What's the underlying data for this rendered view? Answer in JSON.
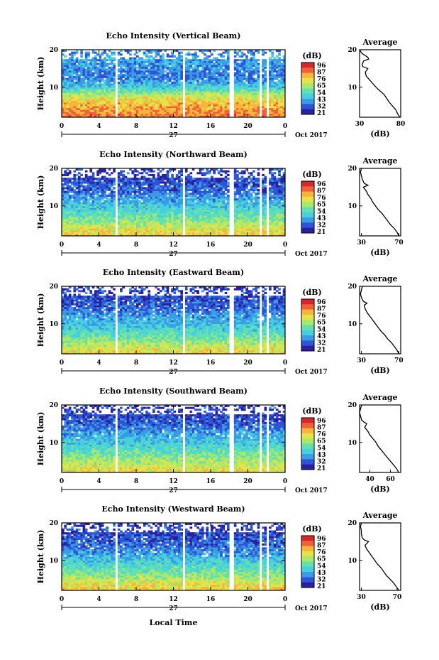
{
  "figure": {
    "xlabel": "Local Time",
    "date_label": "Oct 2017",
    "day_label": "27",
    "colorbar_unit": "(dB)",
    "colorbar_ticks": [
      "96",
      "87",
      "76",
      "65",
      "54",
      "43",
      "32",
      "21"
    ],
    "colors": {
      "scale": [
        "#2a1f9e",
        "#2d55d6",
        "#3b9be5",
        "#45cfe0",
        "#62e0b0",
        "#a8e86a",
        "#e6e24a",
        "#f7b53a",
        "#f0603a",
        "#d62828"
      ]
    }
  },
  "chart_data": [
    {
      "type": "heatmap",
      "title": "Echo Intensity (Vertical Beam)",
      "ylabel": "Height (km)",
      "xlim": [
        0,
        24
      ],
      "ylim": [
        2,
        20
      ],
      "x_ticks": [
        "0",
        "4",
        "8",
        "12",
        "16",
        "20",
        "0"
      ],
      "y_ticks": [
        "20",
        "10"
      ],
      "data_gaps_hours": [
        [
          5.8,
          6.1
        ],
        [
          12.9,
          13.2
        ],
        [
          18.0,
          18.5
        ],
        [
          21.2,
          21.5
        ],
        [
          21.9,
          22.2
        ]
      ],
      "mean_intensity_dB_by_height": [
        [
          2,
          80
        ],
        [
          4,
          76
        ],
        [
          6,
          72
        ],
        [
          8,
          62
        ],
        [
          10,
          48
        ],
        [
          12,
          38
        ],
        [
          14,
          36
        ],
        [
          16,
          40
        ],
        [
          18,
          40
        ],
        [
          20,
          38
        ]
      ],
      "profile": {
        "title": "Average",
        "xlabel": "(dB)",
        "x_ticks": [
          "30",
          "80"
        ],
        "y_ticks": [
          "20",
          "10"
        ],
        "xlim": [
          30,
          80
        ],
        "values": [
          [
            2.0,
            79
          ],
          [
            3.0,
            76
          ],
          [
            4.0,
            74
          ],
          [
            5.0,
            70
          ],
          [
            6.0,
            66
          ],
          [
            7.0,
            63
          ],
          [
            8.0,
            60
          ],
          [
            9.0,
            55
          ],
          [
            10.0,
            50
          ],
          [
            11.0,
            46
          ],
          [
            12.0,
            42
          ],
          [
            13.0,
            38
          ],
          [
            14.0,
            37
          ],
          [
            15.0,
            40
          ],
          [
            15.5,
            34
          ],
          [
            16.0,
            33
          ],
          [
            17.0,
            35
          ],
          [
            17.5,
            41
          ],
          [
            18.0,
            40
          ],
          [
            19.0,
            33
          ],
          [
            20.0,
            30
          ]
        ]
      }
    },
    {
      "type": "heatmap",
      "title": "Echo Intensity (Northward Beam)",
      "ylabel": "Height (km)",
      "xlim": [
        0,
        24
      ],
      "ylim": [
        2,
        20
      ],
      "x_ticks": [
        "0",
        "4",
        "8",
        "12",
        "16",
        "20",
        "0"
      ],
      "y_ticks": [
        "20",
        "10"
      ],
      "data_gaps_hours": [
        [
          5.8,
          6.1
        ],
        [
          12.9,
          13.2
        ],
        [
          18.0,
          18.5
        ],
        [
          21.2,
          21.5
        ],
        [
          21.9,
          22.2
        ]
      ],
      "mean_intensity_dB_by_height": [
        [
          2,
          72
        ],
        [
          4,
          66
        ],
        [
          6,
          58
        ],
        [
          8,
          52
        ],
        [
          10,
          46
        ],
        [
          12,
          40
        ],
        [
          14,
          34
        ],
        [
          16,
          32
        ],
        [
          18,
          30
        ]
      ],
      "profile": {
        "title": "Average",
        "xlabel": "(dB)",
        "x_ticks": [
          "30",
          "70"
        ],
        "y_ticks": [
          "20",
          "10"
        ],
        "xlim": [
          28,
          72
        ],
        "values": [
          [
            2.0,
            70
          ],
          [
            3.0,
            68
          ],
          [
            4.0,
            65
          ],
          [
            5.0,
            61
          ],
          [
            6.0,
            58
          ],
          [
            7.0,
            55
          ],
          [
            8.0,
            52
          ],
          [
            9.0,
            48
          ],
          [
            10.0,
            45
          ],
          [
            11.0,
            42
          ],
          [
            12.0,
            40
          ],
          [
            13.0,
            37
          ],
          [
            14.0,
            35
          ],
          [
            15.0,
            32
          ],
          [
            15.5,
            37
          ],
          [
            16.0,
            33
          ],
          [
            17.0,
            31
          ],
          [
            18.0,
            30
          ],
          [
            19.0,
            29
          ],
          [
            20.0,
            30
          ]
        ]
      }
    },
    {
      "type": "heatmap",
      "title": "Echo Intensity (Eastward Beam)",
      "ylabel": "Height (km)",
      "xlim": [
        0,
        24
      ],
      "ylim": [
        2,
        20
      ],
      "x_ticks": [
        "0",
        "4",
        "8",
        "12",
        "16",
        "20",
        "0"
      ],
      "y_ticks": [
        "20",
        "10"
      ],
      "data_gaps_hours": [
        [
          5.8,
          6.1
        ],
        [
          12.9,
          13.2
        ],
        [
          18.0,
          18.5
        ],
        [
          21.2,
          21.5
        ],
        [
          21.9,
          22.2
        ]
      ],
      "mean_intensity_dB_by_height": [
        [
          2,
          70
        ],
        [
          4,
          64
        ],
        [
          6,
          56
        ],
        [
          8,
          50
        ],
        [
          10,
          44
        ],
        [
          12,
          40
        ],
        [
          14,
          34
        ],
        [
          16,
          32
        ],
        [
          18,
          30
        ]
      ],
      "profile": {
        "title": "Average",
        "xlabel": "(dB)",
        "x_ticks": [
          "30",
          "70"
        ],
        "y_ticks": [
          "20",
          "10"
        ],
        "xlim": [
          28,
          72
        ],
        "values": [
          [
            2.0,
            70
          ],
          [
            3.0,
            68
          ],
          [
            4.0,
            65
          ],
          [
            5.0,
            62
          ],
          [
            6.0,
            58
          ],
          [
            7.0,
            55
          ],
          [
            8.0,
            51
          ],
          [
            9.0,
            48
          ],
          [
            10.0,
            45
          ],
          [
            11.0,
            42
          ],
          [
            12.0,
            39
          ],
          [
            13.0,
            36
          ],
          [
            14.0,
            34
          ],
          [
            15.0,
            33
          ],
          [
            15.5,
            36
          ],
          [
            16.0,
            32
          ],
          [
            17.0,
            30
          ],
          [
            18.0,
            29
          ],
          [
            19.0,
            30
          ],
          [
            20.0,
            31
          ]
        ]
      }
    },
    {
      "type": "heatmap",
      "title": "Echo Intensity (Southward Beam)",
      "ylabel": "Height (km)",
      "xlim": [
        0,
        24
      ],
      "ylim": [
        2,
        20
      ],
      "x_ticks": [
        "0",
        "4",
        "8",
        "12",
        "16",
        "20",
        "0"
      ],
      "y_ticks": [
        "20",
        "10"
      ],
      "data_gaps_hours": [
        [
          5.8,
          6.1
        ],
        [
          12.9,
          13.2
        ],
        [
          18.0,
          18.5
        ],
        [
          21.2,
          21.5
        ],
        [
          21.9,
          22.2
        ]
      ],
      "mean_intensity_dB_by_height": [
        [
          2,
          70
        ],
        [
          4,
          64
        ],
        [
          6,
          58
        ],
        [
          8,
          52
        ],
        [
          10,
          46
        ],
        [
          12,
          42
        ],
        [
          14,
          36
        ],
        [
          16,
          32
        ],
        [
          18,
          30
        ]
      ],
      "profile": {
        "title": "Average",
        "xlabel": "(dB)",
        "x_ticks": [
          "40",
          "60"
        ],
        "y_ticks": [
          "20",
          "10"
        ],
        "xlim": [
          30,
          70
        ],
        "values": [
          [
            2.0,
            68
          ],
          [
            3.0,
            66
          ],
          [
            4.0,
            63
          ],
          [
            5.0,
            60
          ],
          [
            6.0,
            57
          ],
          [
            7.0,
            54
          ],
          [
            8.0,
            51
          ],
          [
            9.0,
            48
          ],
          [
            10.0,
            46
          ],
          [
            11.0,
            43
          ],
          [
            12.0,
            40
          ],
          [
            13.0,
            38
          ],
          [
            14.0,
            35
          ],
          [
            15.0,
            37
          ],
          [
            15.5,
            34
          ],
          [
            16.0,
            32
          ],
          [
            17.0,
            31
          ],
          [
            18.0,
            30
          ],
          [
            19.0,
            31
          ],
          [
            20.0,
            32
          ]
        ]
      }
    },
    {
      "type": "heatmap",
      "title": "Echo Intensity (Westward Beam)",
      "ylabel": "Height (km)",
      "xlim": [
        0,
        24
      ],
      "ylim": [
        2,
        20
      ],
      "x_ticks": [
        "0",
        "4",
        "8",
        "12",
        "16",
        "20",
        "0"
      ],
      "y_ticks": [
        "20",
        "10"
      ],
      "data_gaps_hours": [
        [
          5.8,
          6.1
        ],
        [
          12.9,
          13.2
        ],
        [
          18.0,
          18.5
        ],
        [
          21.2,
          21.5
        ],
        [
          21.9,
          22.2
        ]
      ],
      "mean_intensity_dB_by_height": [
        [
          2,
          72
        ],
        [
          4,
          66
        ],
        [
          6,
          58
        ],
        [
          8,
          52
        ],
        [
          10,
          46
        ],
        [
          12,
          40
        ],
        [
          14,
          34
        ],
        [
          16,
          32
        ],
        [
          18,
          30
        ]
      ],
      "profile": {
        "title": "Average",
        "xlabel": "(dB)",
        "x_ticks": [
          "30",
          "70"
        ],
        "y_ticks": [
          "20",
          "10"
        ],
        "xlim": [
          28,
          74
        ],
        "values": [
          [
            2.0,
            72
          ],
          [
            3.0,
            69
          ],
          [
            4.0,
            66
          ],
          [
            5.0,
            62
          ],
          [
            6.0,
            58
          ],
          [
            7.0,
            55
          ],
          [
            8.0,
            52
          ],
          [
            9.0,
            48
          ],
          [
            10.0,
            45
          ],
          [
            11.0,
            42
          ],
          [
            12.0,
            39
          ],
          [
            13.0,
            36
          ],
          [
            14.0,
            34
          ],
          [
            15.0,
            38
          ],
          [
            15.5,
            33
          ],
          [
            16.0,
            31
          ],
          [
            17.0,
            30
          ],
          [
            18.0,
            30
          ],
          [
            19.0,
            29
          ],
          [
            20.0,
            30
          ]
        ]
      }
    }
  ]
}
